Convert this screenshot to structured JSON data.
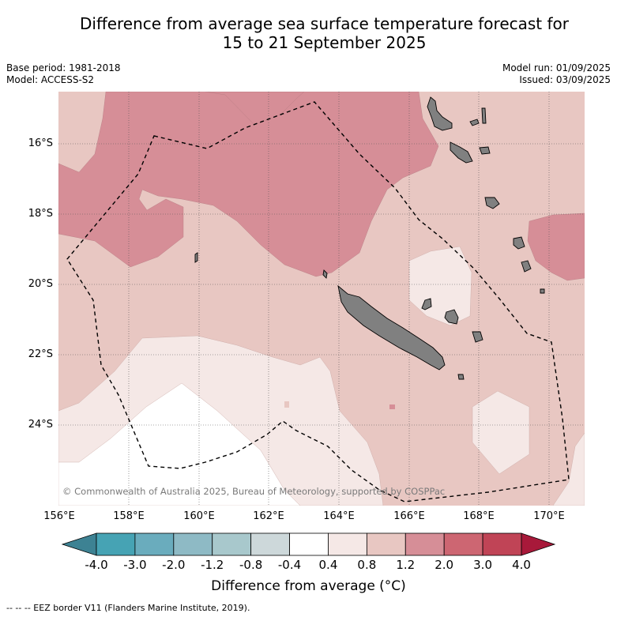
{
  "title_line1": "Difference from average sea surface temperature forecast for",
  "title_line2": "15 to 21 September 2025",
  "base_period": "Base period: 1981-2018",
  "model": "Model: ACCESS-S2",
  "model_run": "Model run: 01/09/2025",
  "issued": "Issued: 03/09/2025",
  "copyright": "© Commonwealth of Australia 2025, Bureau of Meteorology, supported by COSPPac",
  "lat_labels": [
    "16°S",
    "18°S",
    "20°S",
    "22°S",
    "24°S"
  ],
  "lon_labels": [
    "156°E",
    "158°E",
    "160°E",
    "162°E",
    "164°E",
    "166°E",
    "168°E",
    "170°E"
  ],
  "colorbar": {
    "ticks": [
      "-4.0",
      "-3.0",
      "-2.0",
      "-1.2",
      "-0.8",
      "-0.4",
      "0.4",
      "0.8",
      "1.2",
      "2.0",
      "3.0",
      "4.0"
    ],
    "colors": [
      "#46a3b4",
      "#6aacbd",
      "#8ebac5",
      "#a8c8cc",
      "#cdd8da",
      "#ffffff",
      "#f5e8e6",
      "#e8c7c2",
      "#d68e97",
      "#cd6672",
      "#c04456"
    ],
    "under_color": "#3d8293",
    "over_color": "#a8193a",
    "label": "Difference from average (°C)"
  },
  "footer": "-- -- -- EEZ border V11 (Flanders Marine Institute, 2019).",
  "map_colors": {
    "land": "#808080",
    "band_0.4_0.8": "#f5e8e6",
    "band_0.8_1.2": "#e8c7c2",
    "band_1.2_2.0": "#d68e97"
  }
}
